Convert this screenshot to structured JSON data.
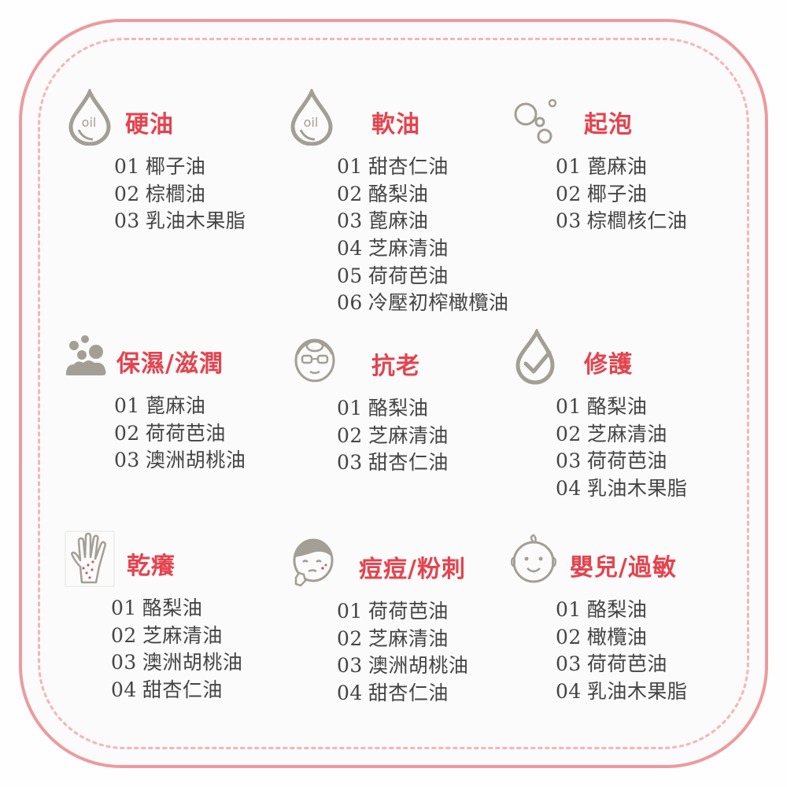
{
  "cells": [
    {
      "title": "硬油",
      "icon": "oil-drop-icon",
      "icon_text": "oil",
      "items": [
        {
          "num": "01",
          "name": "椰子油"
        },
        {
          "num": "02",
          "name": "棕櫚油"
        },
        {
          "num": "03",
          "name": "乳油木果脂"
        }
      ]
    },
    {
      "title": "軟油",
      "icon": "oil-drop-icon",
      "icon_text": "oil",
      "items": [
        {
          "num": "01",
          "name": "甜杏仁油"
        },
        {
          "num": "02",
          "name": "酪梨油"
        },
        {
          "num": "03",
          "name": "蓖麻油"
        },
        {
          "num": "04",
          "name": "芝麻清油"
        },
        {
          "num": "05",
          "name": "荷荷芭油"
        },
        {
          "num": "06",
          "name": "冷壓初榨橄欖油"
        }
      ]
    },
    {
      "title": "起泡",
      "icon": "bubbles-icon",
      "items": [
        {
          "num": "01",
          "name": "蓖麻油"
        },
        {
          "num": "02",
          "name": "椰子油"
        },
        {
          "num": "03",
          "name": "棕櫚核仁油"
        }
      ]
    },
    {
      "title": "保濕/滋潤",
      "icon": "foam-icon",
      "items": [
        {
          "num": "01",
          "name": "蓖麻油"
        },
        {
          "num": "02",
          "name": "荷荷芭油"
        },
        {
          "num": "03",
          "name": "澳洲胡桃油"
        }
      ]
    },
    {
      "title": "抗老",
      "icon": "elder-face-icon",
      "items": [
        {
          "num": "01",
          "name": "酪梨油"
        },
        {
          "num": "02",
          "name": "芝麻清油"
        },
        {
          "num": "03",
          "name": "甜杏仁油"
        }
      ]
    },
    {
      "title": "修護",
      "icon": "drop-check-icon",
      "items": [
        {
          "num": "01",
          "name": "酪梨油"
        },
        {
          "num": "02",
          "name": "芝麻清油"
        },
        {
          "num": "03",
          "name": "荷荷芭油"
        },
        {
          "num": "04",
          "name": "乳油木果脂"
        }
      ]
    },
    {
      "title": "乾癢",
      "icon": "itchy-hand-icon",
      "items": [
        {
          "num": "01",
          "name": "酪梨油"
        },
        {
          "num": "02",
          "name": "芝麻清油"
        },
        {
          "num": "03",
          "name": "澳洲胡桃油"
        },
        {
          "num": "04",
          "name": "甜杏仁油"
        }
      ]
    },
    {
      "title": "痘痘/粉刺",
      "icon": "acne-face-icon",
      "items": [
        {
          "num": "01",
          "name": "荷荷芭油"
        },
        {
          "num": "02",
          "name": "芝麻清油"
        },
        {
          "num": "03",
          "name": "澳洲胡桃油"
        },
        {
          "num": "04",
          "name": "甜杏仁油"
        }
      ]
    },
    {
      "title": "嬰兒/過敏",
      "icon": "baby-face-icon",
      "items": [
        {
          "num": "01",
          "name": "酪梨油"
        },
        {
          "num": "02",
          "name": "橄欖油"
        },
        {
          "num": "03",
          "name": "荷荷芭油"
        },
        {
          "num": "04",
          "name": "乳油木果脂"
        }
      ]
    }
  ],
  "colors": {
    "title": "#e5434e",
    "text": "#444444",
    "icon": "#a39f95",
    "border": "#ee9a9e",
    "dash": "#f4b6b9"
  }
}
